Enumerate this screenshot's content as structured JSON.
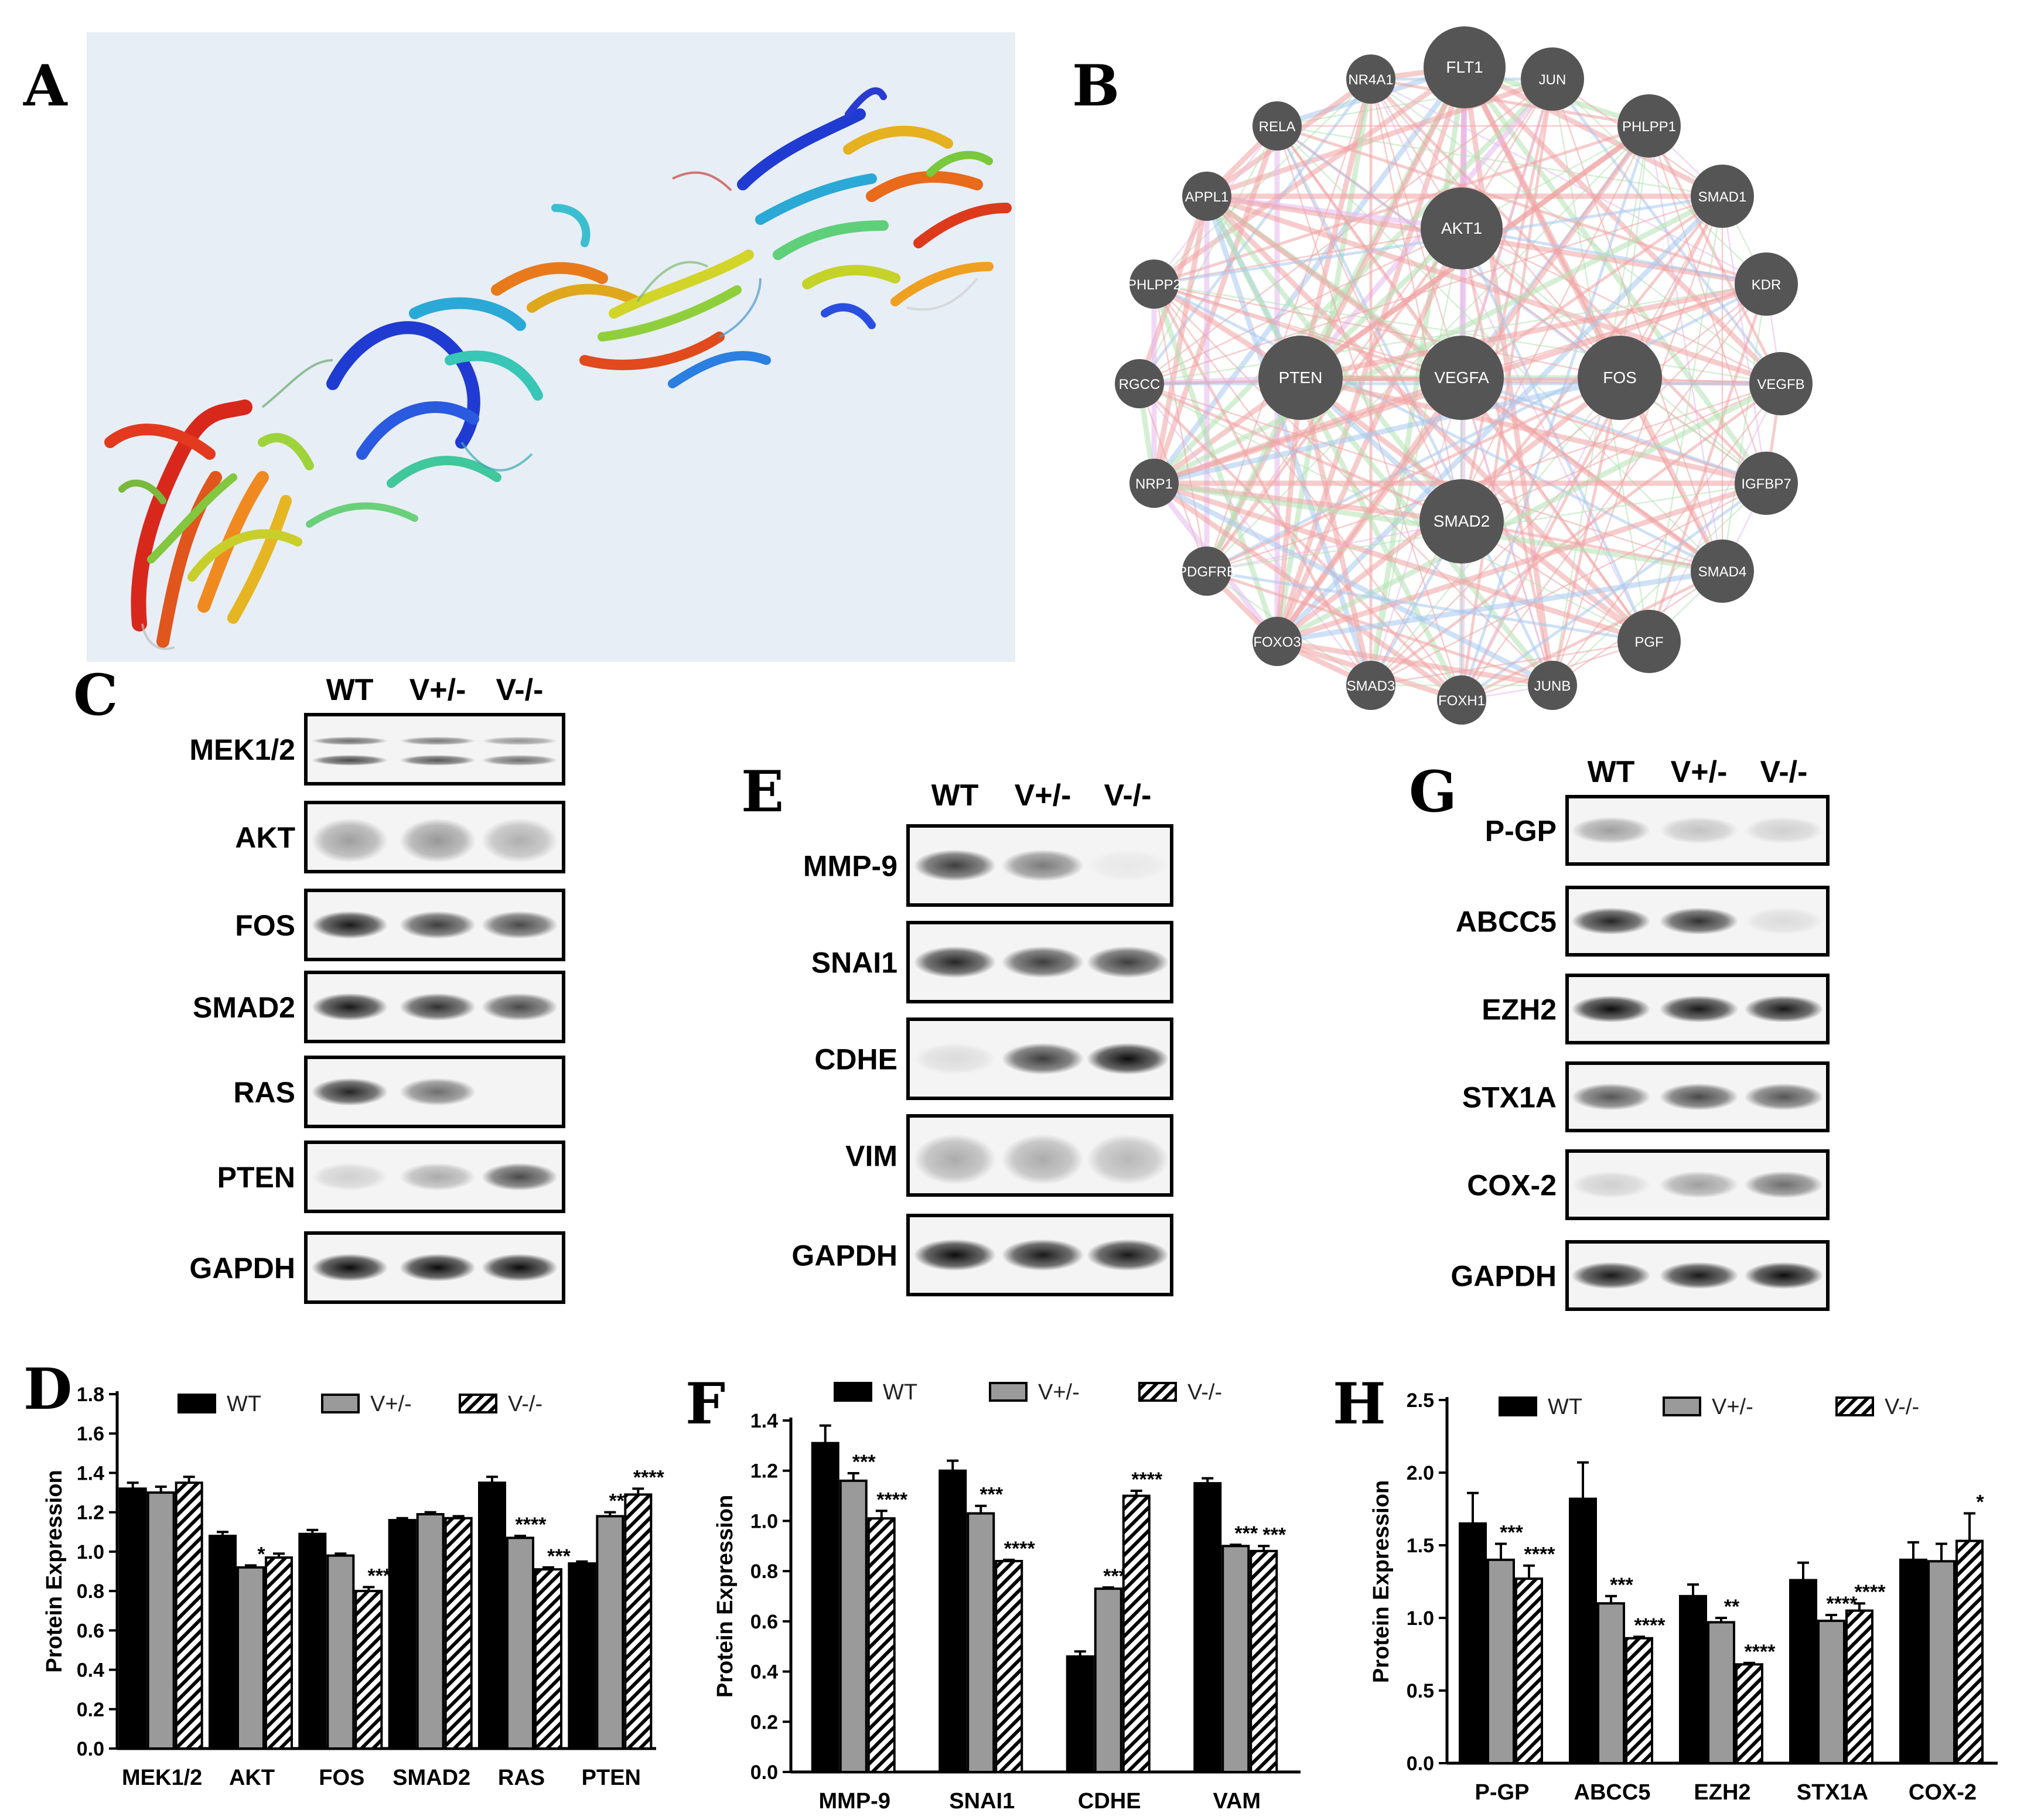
{
  "panels": {
    "A": "A",
    "B": "B",
    "C": "C",
    "D": "D",
    "E": "E",
    "F": "F",
    "G": "G",
    "H": "H"
  },
  "network": {
    "nodes": [
      {
        "label": "FLT1",
        "size": "large"
      },
      {
        "label": "JUN",
        "size": "medium"
      },
      {
        "label": "NR4A1",
        "size": "small"
      },
      {
        "label": "RELA",
        "size": "small"
      },
      {
        "label": "PHLPP1",
        "size": "medium"
      },
      {
        "label": "APPL1",
        "size": "small"
      },
      {
        "label": "AKT1",
        "size": "large"
      },
      {
        "label": "SMAD1",
        "size": "medium"
      },
      {
        "label": "PHLPP2",
        "size": "small"
      },
      {
        "label": "KDR",
        "size": "medium"
      },
      {
        "label": "PTEN",
        "size": "xlarge"
      },
      {
        "label": "VEGFA",
        "size": "xlarge"
      },
      {
        "label": "FOS",
        "size": "xlarge"
      },
      {
        "label": "RGCC",
        "size": "small"
      },
      {
        "label": "VEGFB",
        "size": "medium"
      },
      {
        "label": "NRP1",
        "size": "small"
      },
      {
        "label": "IGFBP7",
        "size": "medium"
      },
      {
        "label": "SMAD2",
        "size": "xlarge"
      },
      {
        "label": "PDGFRB",
        "size": "small"
      },
      {
        "label": "SMAD4",
        "size": "medium"
      },
      {
        "label": "FOXO3",
        "size": "small"
      },
      {
        "label": "PGF",
        "size": "medium"
      },
      {
        "label": "SMAD3",
        "size": "small"
      },
      {
        "label": "FOXH1",
        "size": "small"
      },
      {
        "label": "JUNB",
        "size": "small"
      }
    ],
    "colors": {
      "node": "#555555",
      "edge_main": "#f0a3a3",
      "edge_alt1": "#a8c8ee",
      "edge_alt2": "#b3e2b3",
      "edge_alt3": "#e5b8ee"
    }
  },
  "blots": {
    "C": {
      "lanes": [
        "WT",
        "V+/-",
        "V-/-"
      ],
      "rows": [
        {
          "label": "MEK1/2",
          "bands": [
            0.55,
            0.5,
            0.4
          ],
          "double": true
        },
        {
          "label": "AKT",
          "bands": [
            0.35,
            0.38,
            0.28
          ],
          "diffuse": true
        },
        {
          "label": "FOS",
          "bands": [
            0.9,
            0.75,
            0.7
          ]
        },
        {
          "label": "SMAD2",
          "bands": [
            0.9,
            0.8,
            0.7
          ]
        },
        {
          "label": "RAS",
          "bands": [
            0.85,
            0.55,
            0.0
          ]
        },
        {
          "label": "PTEN",
          "bands": [
            0.15,
            0.3,
            0.7
          ]
        },
        {
          "label": "GAPDH",
          "bands": [
            0.95,
            0.95,
            0.95
          ]
        }
      ]
    },
    "E": {
      "lanes": [
        "WT",
        "V+/-",
        "V-/-"
      ],
      "rows": [
        {
          "label": "MMP-9",
          "bands": [
            0.75,
            0.5,
            0.05
          ]
        },
        {
          "label": "SNAI1",
          "bands": [
            0.85,
            0.75,
            0.75
          ]
        },
        {
          "label": "CDHE",
          "bands": [
            0.1,
            0.75,
            0.95
          ]
        },
        {
          "label": "VIM",
          "bands": [
            0.3,
            0.3,
            0.25
          ],
          "diffuse": true
        },
        {
          "label": "GAPDH",
          "bands": [
            0.95,
            0.9,
            0.9
          ]
        }
      ]
    },
    "G": {
      "lanes": [
        "WT",
        "V+/-",
        "V-/-"
      ],
      "rows": [
        {
          "label": "P-GP",
          "bands": [
            0.35,
            0.2,
            0.15
          ]
        },
        {
          "label": "ABCC5",
          "bands": [
            0.85,
            0.8,
            0.1
          ]
        },
        {
          "label": "EZH2",
          "bands": [
            0.95,
            0.9,
            0.9
          ]
        },
        {
          "label": "STX1A",
          "bands": [
            0.65,
            0.7,
            0.65
          ]
        },
        {
          "label": "COX-2",
          "bands": [
            0.15,
            0.35,
            0.55
          ]
        },
        {
          "label": "GAPDH",
          "bands": [
            0.9,
            0.9,
            0.95
          ]
        }
      ]
    }
  },
  "chart_data": [
    {
      "type": "bar",
      "panel": "D",
      "ylabel": "Protein Expression",
      "ylim": [
        0,
        1.8
      ],
      "yticks": [
        "0.0",
        "0.2",
        "0.4",
        "0.6",
        "0.8",
        "1.0",
        "1.2",
        "1.4",
        "1.6",
        "1.8"
      ],
      "categories": [
        "MEK1/2",
        "AKT",
        "FOS",
        "SMAD2",
        "RAS",
        "PTEN"
      ],
      "series": [
        {
          "name": "WT",
          "values": [
            1.32,
            1.08,
            1.09,
            1.16,
            1.35,
            0.94
          ],
          "errors": [
            0.03,
            0.02,
            0.02,
            0.01,
            0.03,
            0.01
          ],
          "marks": [
            "",
            "",
            "",
            "",
            "",
            ""
          ]
        },
        {
          "name": "V+/-",
          "values": [
            1.3,
            0.92,
            0.98,
            1.19,
            1.07,
            1.18
          ],
          "errors": [
            0.03,
            0.01,
            0.01,
            0.01,
            0.01,
            0.02
          ],
          "marks": [
            "",
            "*",
            "",
            "",
            "****",
            "***"
          ]
        },
        {
          "name": "V-/-",
          "values": [
            1.35,
            0.97,
            0.8,
            1.17,
            0.91,
            1.29
          ],
          "errors": [
            0.03,
            0.02,
            0.02,
            0.01,
            0.01,
            0.03
          ],
          "marks": [
            "",
            "",
            "***",
            "",
            "***",
            "****"
          ]
        }
      ],
      "legend": "top"
    },
    {
      "type": "bar",
      "panel": "F",
      "ylabel": "Protein Expression",
      "ylim": [
        0,
        1.4
      ],
      "yticks": [
        "0.0",
        "0.2",
        "0.4",
        "0.6",
        "0.8",
        "1.0",
        "1.2",
        "1.4"
      ],
      "categories": [
        "MMP-9",
        "SNAI1",
        "CDHE",
        "VAM"
      ],
      "series": [
        {
          "name": "WT",
          "values": [
            1.31,
            1.2,
            0.46,
            1.15
          ],
          "errors": [
            0.07,
            0.04,
            0.02,
            0.02
          ],
          "marks": [
            "",
            "",
            "",
            ""
          ]
        },
        {
          "name": "V+/-",
          "values": [
            1.16,
            1.03,
            0.73,
            0.9
          ],
          "errors": [
            0.03,
            0.03,
            0.005,
            0.005
          ],
          "marks": [
            "***",
            "***",
            "****",
            "***"
          ]
        },
        {
          "name": "V-/-",
          "values": [
            1.01,
            0.84,
            1.1,
            0.88
          ],
          "errors": [
            0.03,
            0.005,
            0.02,
            0.02
          ],
          "marks": [
            "****",
            "****",
            "****",
            "***"
          ]
        }
      ],
      "legend": "top"
    },
    {
      "type": "bar",
      "panel": "H",
      "ylabel": "Protein Expression",
      "ylim": [
        0,
        2.5
      ],
      "yticks": [
        "0.0",
        "0.5",
        "1.0",
        "1.5",
        "2.0",
        "2.5"
      ],
      "categories": [
        "P-GP",
        "ABCC5",
        "EZH2",
        "STX1A",
        "COX-2"
      ],
      "series": [
        {
          "name": "WT",
          "values": [
            1.65,
            1.82,
            1.15,
            1.26,
            1.4
          ],
          "errors": [
            0.21,
            0.25,
            0.08,
            0.12,
            0.12
          ],
          "marks": [
            "",
            "",
            "",
            "",
            ""
          ]
        },
        {
          "name": "V+/-",
          "values": [
            1.4,
            1.1,
            0.97,
            0.98,
            1.39
          ],
          "errors": [
            0.11,
            0.05,
            0.03,
            0.04,
            0.12
          ],
          "marks": [
            "***",
            "***",
            "**",
            "****",
            ""
          ]
        },
        {
          "name": "V-/-",
          "values": [
            1.27,
            0.86,
            0.68,
            1.05,
            1.53
          ],
          "errors": [
            0.09,
            0.01,
            0.01,
            0.05,
            0.19
          ],
          "marks": [
            "****",
            "****",
            "****",
            "****",
            "*"
          ]
        }
      ],
      "legend": "top"
    }
  ]
}
